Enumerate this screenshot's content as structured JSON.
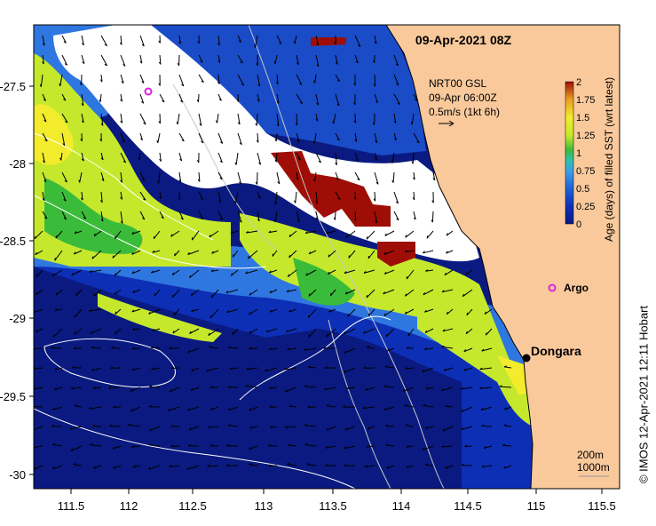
{
  "map": {
    "datetime": "09-Apr-2021 08Z",
    "current_source": {
      "line1": "NRT00 GSL",
      "line2": "09-Apr 06:00Z",
      "line3": "0.5m/s (1kt 6h)"
    },
    "x_ticks": [
      "111.5",
      "112",
      "112.5",
      "113",
      "113.5",
      "114",
      "114.5",
      "115",
      "115.5"
    ],
    "y_ticks": [
      "-27.5",
      "-28",
      "-28.5",
      "-29",
      "-29.5",
      "-30"
    ],
    "places": [
      {
        "name": "Dongara",
        "lon": 114.93,
        "lat": -29.25,
        "marker": "black-dot"
      },
      {
        "name": "Argo",
        "lon": 115.08,
        "lat": -28.83,
        "marker": "magenta-star"
      }
    ],
    "argo_offshore": {
      "lon": 112.12,
      "lat": -27.53
    },
    "contour_legend": {
      "line1": "200m",
      "line2": "1000m"
    },
    "land_color": "#f9c99c",
    "credit": "© IMOS 12-Apr-2021 12:11 Hobart"
  },
  "colorbar": {
    "title": "Age (days) of filled SST (wrt latest)",
    "ticks": [
      "0",
      "0.25",
      "0.5",
      "0.75",
      "1",
      "1.25",
      "1.5",
      "1.75",
      "2"
    ],
    "colors": [
      "#0a1a80",
      "#0d2fb5",
      "#1f63d6",
      "#3f9ee8",
      "#2ec2a8",
      "#3bbb3a",
      "#c6e82c",
      "#f2ec2d",
      "#e79b22",
      "#9e0e06"
    ]
  }
}
